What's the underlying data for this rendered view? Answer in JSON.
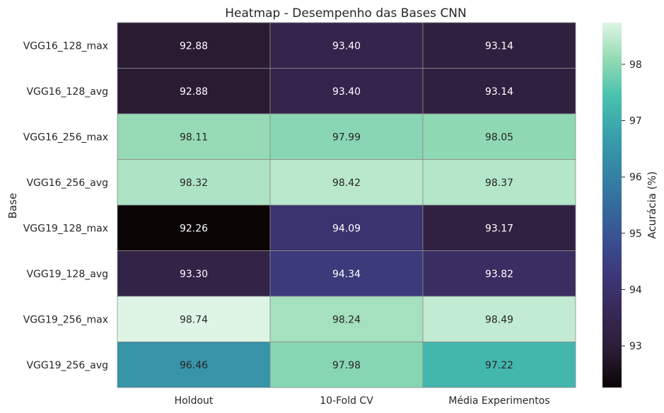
{
  "chart_data": {
    "type": "heatmap",
    "title": "Heatmap - Desempenho das Bases CNN",
    "ylabel": "Base",
    "xlabel": "",
    "columns": [
      "Holdout",
      "10-Fold CV",
      "Média Experimentos"
    ],
    "rows": [
      "VGG16_128_max",
      "VGG16_128_avg",
      "VGG16_256_max",
      "VGG16_256_avg",
      "VGG19_128_max",
      "VGG19_128_avg",
      "VGG19_256_max",
      "VGG19_256_avg"
    ],
    "values": [
      [
        92.88,
        93.4,
        93.14
      ],
      [
        92.88,
        93.4,
        93.14
      ],
      [
        98.11,
        97.99,
        98.05
      ],
      [
        98.32,
        98.42,
        98.37
      ],
      [
        92.26,
        94.09,
        93.17
      ],
      [
        93.3,
        94.34,
        93.82
      ],
      [
        98.74,
        98.24,
        98.49
      ],
      [
        96.46,
        97.98,
        97.22
      ]
    ],
    "value_labels": [
      [
        "92.88",
        "93.40",
        "93.14"
      ],
      [
        "92.88",
        "93.40",
        "93.14"
      ],
      [
        "98.11",
        "97.99",
        "98.05"
      ],
      [
        "98.32",
        "98.42",
        "98.37"
      ],
      [
        "92.26",
        "94.09",
        "93.17"
      ],
      [
        "93.30",
        "94.34",
        "93.82"
      ],
      [
        "98.74",
        "98.24",
        "98.49"
      ],
      [
        "96.46",
        "97.98",
        "97.22"
      ]
    ],
    "colorscale": "mako",
    "vmin": 92.26,
    "vmax": 98.74,
    "colorbar": {
      "label": "Acurácia (%)",
      "ticks": [
        "93",
        "94",
        "95",
        "96",
        "97",
        "98"
      ],
      "tick_values": [
        93,
        94,
        95,
        96,
        97,
        98
      ]
    },
    "grid": false,
    "legend": "right"
  }
}
